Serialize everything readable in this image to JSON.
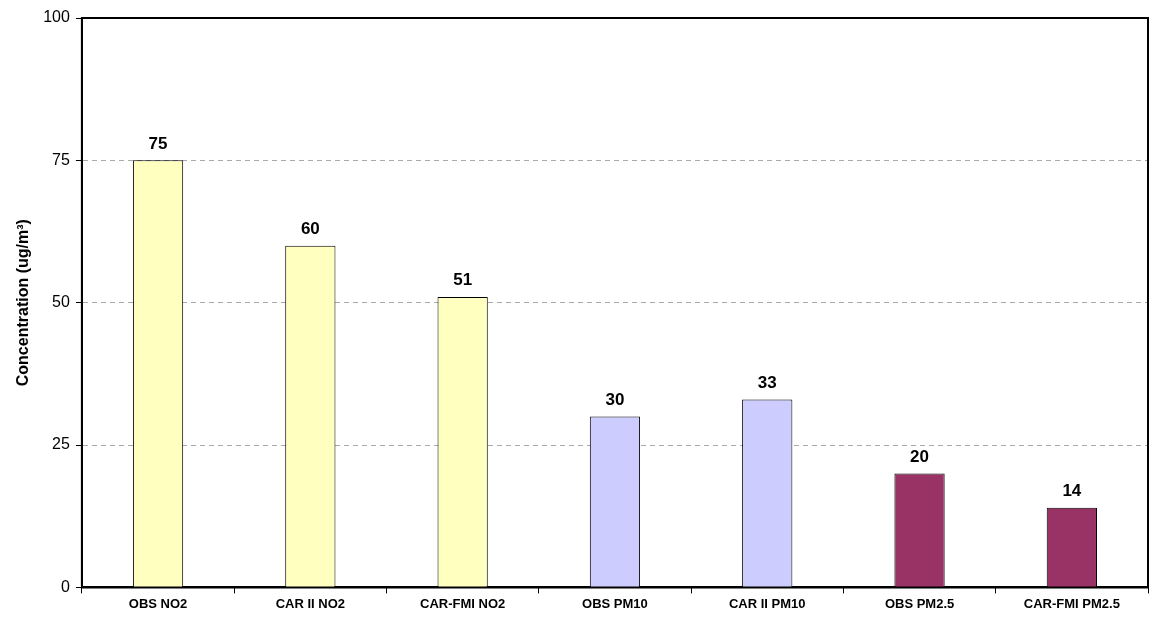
{
  "chart_data": {
    "type": "bar",
    "ylabel": "Concentration (ug/m³)",
    "categories": [
      "OBS NO2",
      "CAR II NO2",
      "CAR-FMI NO2",
      "OBS PM10",
      "CAR II PM10",
      "OBS PM2.5",
      "CAR-FMI PM2.5"
    ],
    "values": [
      75,
      60,
      51,
      30,
      33,
      20,
      14
    ],
    "colors": [
      "#ffffc0",
      "#ffffc0",
      "#ffffc0",
      "#ccccff",
      "#ccccff",
      "#993366",
      "#993366"
    ],
    "ylim": [
      0,
      100
    ],
    "yticks": [
      0,
      25,
      50,
      75,
      100
    ],
    "grid": "y",
    "data_labels": true,
    "legend": false
  }
}
